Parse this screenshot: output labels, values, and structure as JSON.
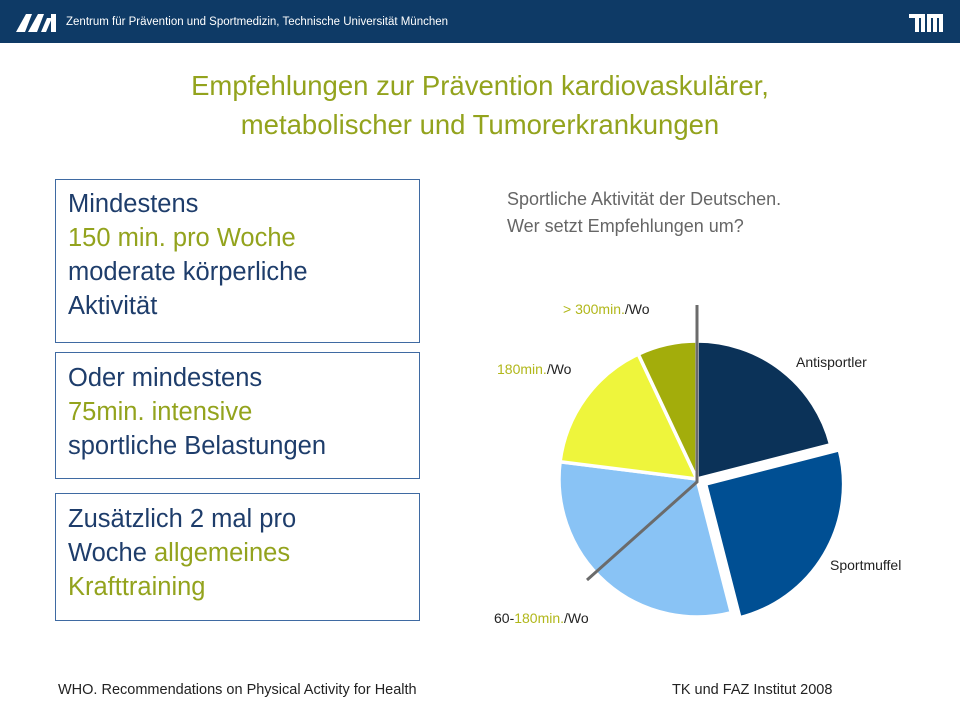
{
  "header": {
    "institution": "Zentrum für Prävention und Sportmedizin, Technische Universität München",
    "logo_left": "ari-logo",
    "logo_right": "tum-logo",
    "bar_color": "#0e3a66"
  },
  "title": {
    "line1": "Empfehlungen zur Prävention kardiovaskulärer,",
    "line2": "metabolischer und Tumorerkrankungen"
  },
  "boxes": [
    {
      "lines": [
        "Mindestens",
        "150 min. pro Woche",
        "moderate körperliche",
        "Aktivität"
      ]
    },
    {
      "lines": [
        "Oder mindestens",
        "75min. intensive",
        "sportliche Belastungen"
      ]
    },
    {
      "line1": "Zusätzlich 2 mal pro",
      "line2_a": "Woche ",
      "line2_b": "allgemeines",
      "line3": "Krafttraining"
    }
  ],
  "subtitle": {
    "line1": "Sportliche Aktivität der Deutschen.",
    "line2": "Wer setzt Empfehlungen um?"
  },
  "chart_data": {
    "type": "pie",
    "start_angle_deg": 0,
    "direction": "clockwise",
    "slices": [
      {
        "label": "Antisportler",
        "value": 21,
        "color": "#0b3258",
        "exploded": false
      },
      {
        "label": "Sportmuffel",
        "value": 25,
        "color": "#004f93",
        "exploded": true
      },
      {
        "label": "60-180min./Wo",
        "value": 31,
        "color": "#89c3f5",
        "exploded": false
      },
      {
        "label": "180min./Wo",
        "value": 16,
        "color": "#eef53c",
        "exploded": false
      },
      {
        "label": "> 300min./Wo",
        "value": 7,
        "color": "#a3ad0b",
        "exploded": false
      }
    ],
    "labels": {
      "antisportler": "Antisportler",
      "sportmuffel": "Sportmuffel",
      "min180": {
        "a": "180min.",
        "b": "/Wo"
      },
      "min300": {
        "a": "> 300min.",
        "b": "/Wo"
      },
      "min60": {
        "a": "60-",
        "b": "180min.",
        "c": "/Wo"
      }
    },
    "recommendation_line_color": "#6b6b6b"
  },
  "footer": {
    "source_left": "WHO. Recommendations on Physical Activity for Health",
    "source_right": "TK und FAZ Institut 2008"
  }
}
